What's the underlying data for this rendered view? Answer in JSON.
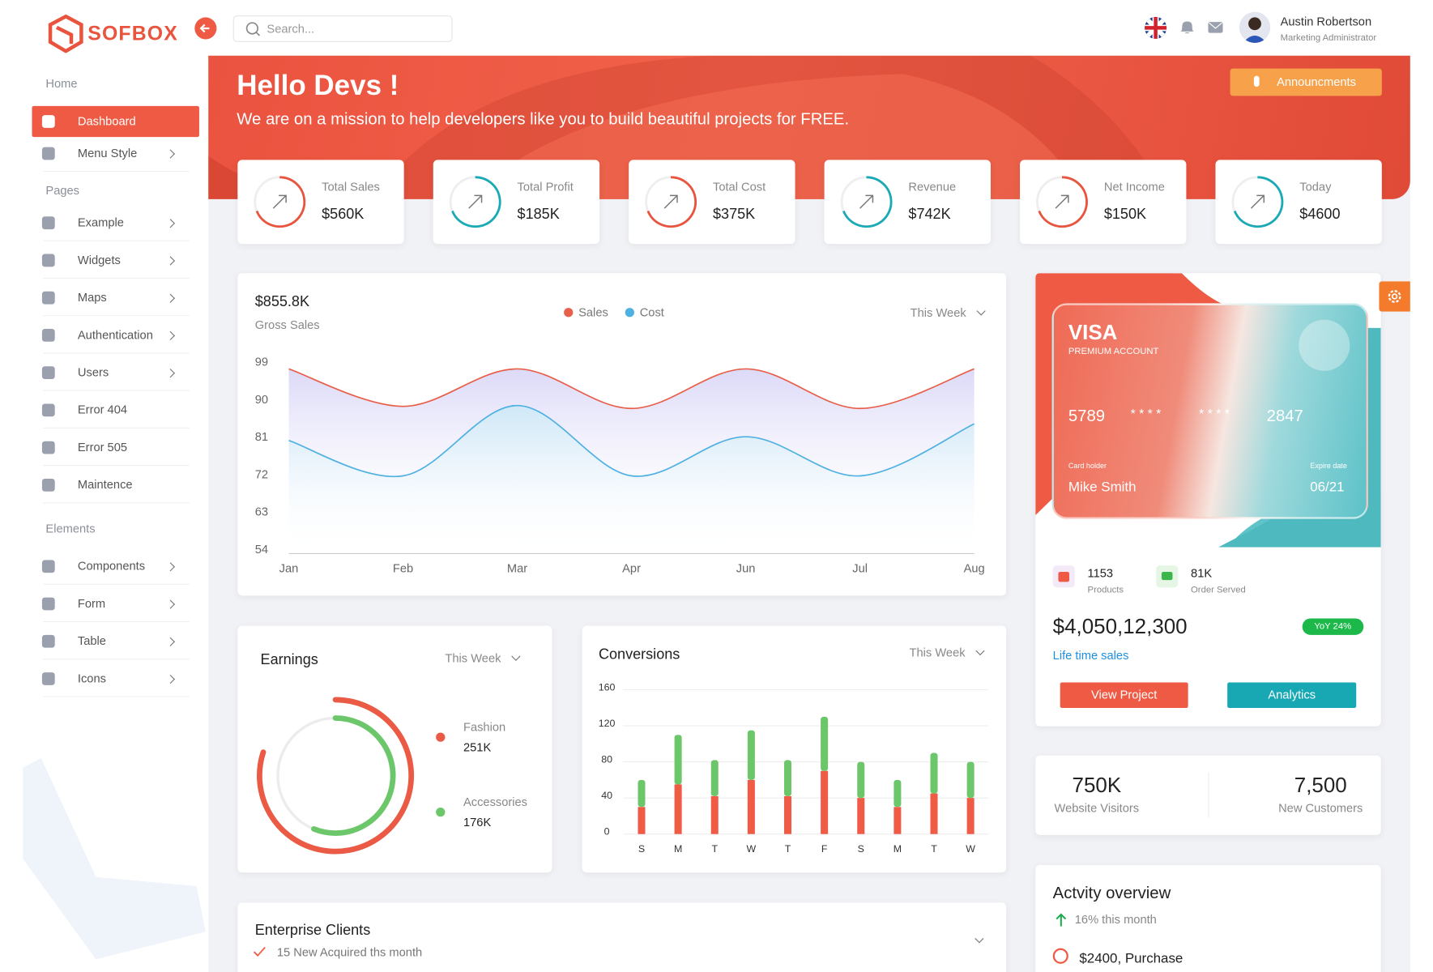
{
  "brand": "SOFBOX",
  "search_placeholder": "Search...",
  "user": {
    "name": "Austin Robertson",
    "role": "Marketing Administrator"
  },
  "sidebar": {
    "sections": [
      {
        "title": "Home",
        "items": [
          "Dashboard",
          "Menu Style"
        ]
      },
      {
        "title": "Pages",
        "items": [
          "Example",
          "Widgets",
          "Maps",
          "Authentication",
          "Users",
          "Error 404",
          "Error 505",
          "Maintence"
        ]
      },
      {
        "title": "Elements",
        "items": [
          "Components",
          "Form",
          "Table",
          "Icons"
        ]
      }
    ]
  },
  "banner": {
    "title": "Hello Devs !",
    "subtitle": "We are on a mission to help developers like you to build beautiful projects for FREE.",
    "button": "Announcments"
  },
  "stats": [
    {
      "label": "Total Sales",
      "value": "$560K"
    },
    {
      "label": "Total Profit",
      "value": "$185K"
    },
    {
      "label": "Total Cost",
      "value": "$375K"
    },
    {
      "label": "Revenue",
      "value": "$742K"
    },
    {
      "label": "Net Income",
      "value": "$150K"
    },
    {
      "label": "Today",
      "value": "$4600"
    }
  ],
  "chart_data": [
    {
      "type": "line",
      "title": "$855.8K",
      "subtitle": "Gross Sales",
      "filter": "This Week",
      "categories": [
        "Jan",
        "Feb",
        "Mar",
        "Apr",
        "Jun",
        "Jul",
        "Aug"
      ],
      "series": [
        {
          "name": "Sales",
          "color": "#e8604a",
          "values": [
            97.5,
            88.5,
            97.5,
            88,
            97.5,
            88,
            97.5
          ]
        },
        {
          "name": "Cost",
          "color": "#4fb0e2",
          "values": [
            80.3,
            71.8,
            88.7,
            71.8,
            81.2,
            71.8,
            84.3
          ]
        }
      ],
      "ylim": [
        54,
        99
      ],
      "yticks": [
        99,
        90,
        81,
        72,
        63,
        54
      ],
      "grid": false
    },
    {
      "type": "donut",
      "title": "Earnings",
      "filter": "This Week",
      "categories": [
        "Fashion",
        "Accessories"
      ],
      "values": [
        251000,
        176000
      ],
      "value_labels": [
        "251K",
        "176K"
      ],
      "colors": [
        "#ea5a44",
        "#6cc76a"
      ]
    },
    {
      "type": "bar",
      "stacked": true,
      "title": "Conversions",
      "filter": "This Week",
      "categories": [
        "S",
        "M",
        "T",
        "W",
        "T",
        "F",
        "S",
        "M",
        "T",
        "W"
      ],
      "series": [
        {
          "color": "#ef5b45",
          "values": [
            30,
            55,
            42,
            60,
            42,
            70,
            40,
            30,
            45,
            40
          ]
        },
        {
          "color": "#6cc76a",
          "values": [
            30,
            55,
            40,
            55,
            40,
            60,
            40,
            30,
            45,
            40
          ]
        }
      ],
      "ylim": [
        0,
        160
      ],
      "yticks": [
        0,
        40,
        80,
        120,
        160
      ],
      "grid": true
    }
  ],
  "card": {
    "brand": "VISA",
    "tier": "PREMIUM ACCOUNT",
    "number": [
      "5789",
      "* * * *",
      "* * * *",
      "2847"
    ],
    "holder_label": "Card holder",
    "holder": "Mike Smith",
    "expiry_label": "Expire date",
    "expiry": "06/21"
  },
  "sales_summary": {
    "products": {
      "value": "1153",
      "label": "Products"
    },
    "orders": {
      "value": "81K",
      "label": "Order Served"
    },
    "total": "$4,050,12,300",
    "badge": "YoY 24%",
    "caption": "Life time sales",
    "buttons": [
      "View Project",
      "Analytics"
    ]
  },
  "visitors": [
    {
      "value": "750K",
      "label": "Website Visitors"
    },
    {
      "value": "7,500",
      "label": "New Customers"
    }
  ],
  "activity": {
    "title": "Actvity overview",
    "trend": "16% this month",
    "items": [
      "$2400, Purchase"
    ]
  },
  "enterprise": {
    "title": "Enterprise Clients",
    "subtitle": "15 New Acquired ths month"
  }
}
